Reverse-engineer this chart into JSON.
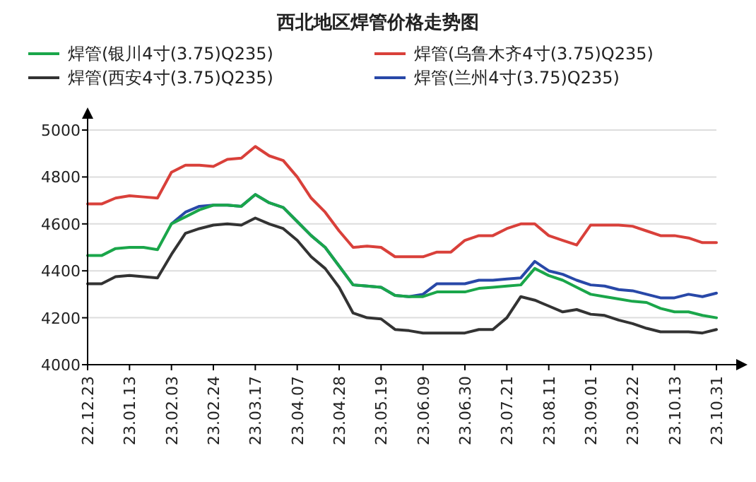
{
  "chart_data": {
    "type": "line",
    "title": "西北地区焊管价格走势图",
    "categories": [
      "22.12.23",
      null,
      null,
      "23.01.13",
      null,
      null,
      "23.02.03",
      null,
      null,
      "23.02.24",
      null,
      null,
      "23.03.17",
      null,
      null,
      "23.04.07",
      null,
      null,
      "23.04.28",
      null,
      null,
      "23.05.19",
      null,
      null,
      "23.06.09",
      null,
      null,
      "23.06.30",
      null,
      null,
      "23.07.21",
      null,
      null,
      "23.08.11",
      null,
      null,
      "23.09.01",
      null,
      null,
      "23.09.22",
      null,
      null,
      "23.10.13",
      null,
      null,
      "23.10.31"
    ],
    "series": [
      {
        "name": "焊管(兰州4寸(3.75)Q235)",
        "color": "#2848a8",
        "values": [
          null,
          null,
          null,
          null,
          null,
          null,
          4600,
          4650,
          4675,
          4680,
          4680,
          4675,
          4725,
          4690,
          4670,
          4610,
          4550,
          4500,
          4420,
          4340,
          4335,
          4330,
          4295,
          4290,
          4300,
          4345,
          4345,
          4345,
          4360,
          4360,
          4365,
          4370,
          4440,
          4400,
          4385,
          4360,
          4340,
          4335,
          4320,
          4315,
          4300,
          4285,
          4285,
          4300,
          4290,
          4305
        ]
      },
      {
        "name": "焊管(银川4寸(3.75)Q235)",
        "color": "#1aa64a",
        "values": [
          4465,
          4465,
          4495,
          4500,
          4500,
          4490,
          4600,
          4630,
          4660,
          4680,
          4680,
          4675,
          4725,
          4690,
          4670,
          4610,
          4550,
          4500,
          4420,
          4340,
          4335,
          4330,
          4295,
          4290,
          4290,
          4310,
          4310,
          4310,
          4325,
          4330,
          4335,
          4340,
          4410,
          4380,
          4360,
          4330,
          4300,
          4290,
          4280,
          4270,
          4265,
          4240,
          4225,
          4225,
          4210,
          4200
        ]
      },
      {
        "name": "焊管(乌鲁木齐4寸(3.75)Q235)",
        "color": "#d9403a",
        "values": [
          4685,
          4685,
          4710,
          4720,
          4715,
          4710,
          4820,
          4850,
          4850,
          4845,
          4875,
          4880,
          4930,
          4890,
          4870,
          4800,
          4710,
          4650,
          4570,
          4500,
          4505,
          4500,
          4460,
          4460,
          4460,
          4480,
          4480,
          4530,
          4550,
          4550,
          4580,
          4600,
          4600,
          4550,
          4530,
          4510,
          4595,
          4595,
          4595,
          4590,
          4570,
          4550,
          4550,
          4540,
          4520,
          4520
        ]
      },
      {
        "name": "焊管(西安4寸(3.75)Q235)",
        "color": "#333333",
        "values": [
          4345,
          4345,
          4375,
          4380,
          4375,
          4370,
          4470,
          4560,
          4580,
          4595,
          4600,
          4595,
          4625,
          4600,
          4580,
          4530,
          4460,
          4410,
          4330,
          4220,
          4200,
          4195,
          4150,
          4145,
          4135,
          4135,
          4135,
          4135,
          4150,
          4150,
          4200,
          4290,
          4275,
          4250,
          4225,
          4235,
          4215,
          4210,
          4190,
          4175,
          4155,
          4140,
          4140,
          4140,
          4135,
          4150
        ]
      }
    ],
    "ylim": [
      4000,
      5000
    ],
    "yticks": [
      4000,
      4200,
      4400,
      4600,
      4800,
      5000
    ],
    "grid": "y",
    "legend": "top"
  }
}
